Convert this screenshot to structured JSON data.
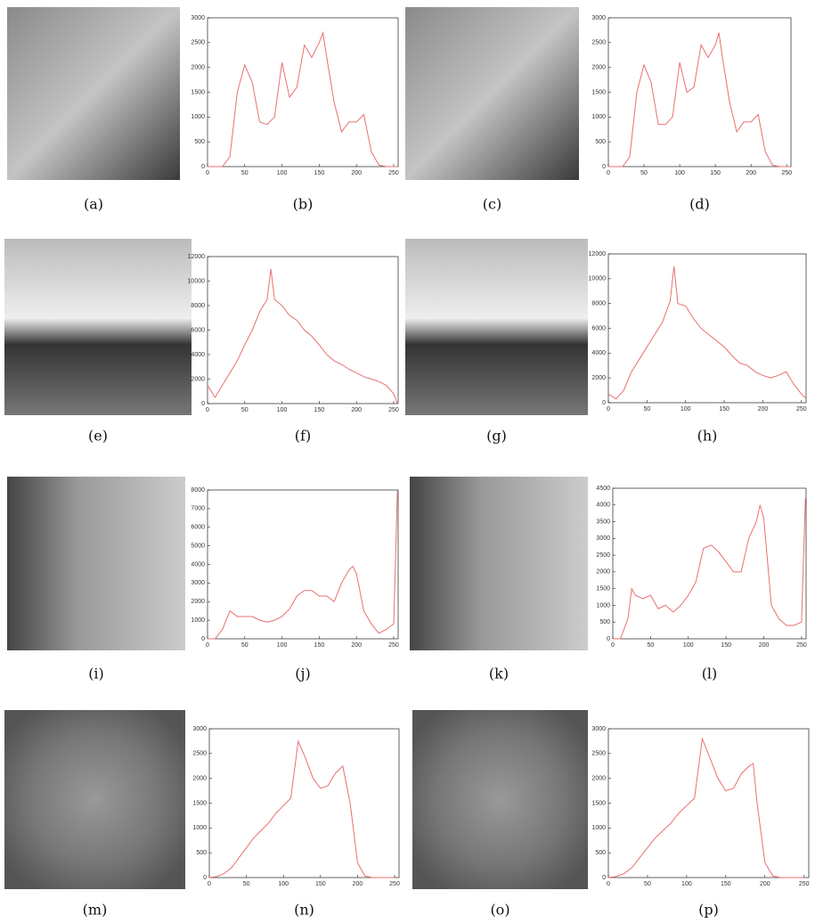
{
  "photos": [
    {
      "caption": "(a)"
    },
    {
      "caption": "(c)"
    },
    {
      "caption": "(e)"
    },
    {
      "caption": "(g)"
    },
    {
      "caption": "(i)"
    },
    {
      "caption": "(k)"
    },
    {
      "caption": "(m)"
    },
    {
      "caption": "(o)"
    }
  ],
  "chart_data": [
    {
      "type": "line",
      "caption": "(b)",
      "color": "#e8706f",
      "xlim": [
        0,
        256
      ],
      "ylim": [
        0,
        3000
      ],
      "xticks": [
        0,
        50,
        100,
        150,
        200,
        250
      ],
      "yticks": [
        0,
        500,
        1000,
        1500,
        2000,
        2500,
        3000
      ],
      "x": [
        0,
        10,
        20,
        30,
        40,
        50,
        60,
        70,
        80,
        90,
        100,
        110,
        120,
        130,
        140,
        150,
        155,
        160,
        170,
        180,
        190,
        200,
        210,
        220,
        230,
        240,
        250,
        255
      ],
      "values": [
        0,
        0,
        0,
        200,
        1500,
        2050,
        1700,
        900,
        850,
        1000,
        2100,
        1400,
        1600,
        2450,
        2200,
        2500,
        2700,
        2200,
        1300,
        700,
        900,
        900,
        1050,
        300,
        30,
        0,
        0,
        0
      ]
    },
    {
      "type": "line",
      "caption": "(d)",
      "color": "#e8706f",
      "xlim": [
        0,
        256
      ],
      "ylim": [
        0,
        3000
      ],
      "xticks": [
        0,
        50,
        100,
        150,
        200,
        250
      ],
      "yticks": [
        0,
        500,
        1000,
        1500,
        2000,
        2500,
        3000
      ],
      "x": [
        0,
        10,
        20,
        30,
        40,
        50,
        60,
        70,
        80,
        90,
        100,
        110,
        120,
        130,
        140,
        150,
        155,
        160,
        170,
        180,
        190,
        200,
        210,
        220,
        230,
        240,
        250,
        255
      ],
      "values": [
        0,
        0,
        0,
        200,
        1500,
        2050,
        1700,
        850,
        850,
        1000,
        2100,
        1500,
        1600,
        2450,
        2200,
        2450,
        2700,
        2200,
        1300,
        700,
        900,
        900,
        1050,
        300,
        30,
        0,
        0,
        0
      ]
    },
    {
      "type": "line",
      "caption": "(f)",
      "color": "#e8706f",
      "xlim": [
        0,
        256
      ],
      "ylim": [
        0,
        12000
      ],
      "xticks": [
        0,
        50,
        100,
        150,
        200,
        250
      ],
      "yticks": [
        0,
        2000,
        4000,
        6000,
        8000,
        10000,
        12000
      ],
      "x": [
        0,
        10,
        20,
        30,
        40,
        50,
        60,
        70,
        80,
        85,
        90,
        100,
        110,
        120,
        130,
        140,
        150,
        160,
        170,
        180,
        190,
        200,
        210,
        220,
        230,
        240,
        250,
        255
      ],
      "values": [
        1500,
        500,
        1500,
        2500,
        3500,
        4800,
        6000,
        7500,
        8500,
        11000,
        8500,
        8000,
        7200,
        6800,
        6000,
        5500,
        4800,
        4000,
        3500,
        3200,
        2800,
        2500,
        2200,
        2000,
        1800,
        1500,
        800,
        0
      ]
    },
    {
      "type": "line",
      "caption": "(h)",
      "color": "#e8706f",
      "xlim": [
        0,
        256
      ],
      "ylim": [
        0,
        12000
      ],
      "xticks": [
        0,
        50,
        100,
        150,
        200,
        250
      ],
      "yticks": [
        0,
        2000,
        4000,
        6000,
        8000,
        10000,
        12000
      ],
      "x": [
        0,
        10,
        20,
        30,
        40,
        50,
        60,
        70,
        80,
        85,
        90,
        100,
        110,
        120,
        130,
        140,
        150,
        160,
        170,
        180,
        190,
        200,
        210,
        220,
        230,
        240,
        250,
        255
      ],
      "values": [
        700,
        300,
        1000,
        2500,
        3500,
        4500,
        5500,
        6500,
        8200,
        11000,
        8000,
        7800,
        6800,
        6000,
        5500,
        5000,
        4500,
        3800,
        3200,
        3000,
        2500,
        2200,
        2000,
        2200,
        2500,
        1500,
        700,
        400
      ]
    },
    {
      "type": "line",
      "caption": "(j)",
      "color": "#e8706f",
      "xlim": [
        0,
        256
      ],
      "ylim": [
        0,
        8000
      ],
      "xticks": [
        0,
        50,
        100,
        150,
        200,
        250
      ],
      "yticks": [
        0,
        1000,
        2000,
        3000,
        4000,
        5000,
        6000,
        7000,
        8000
      ],
      "x": [
        0,
        10,
        20,
        30,
        40,
        50,
        60,
        70,
        80,
        90,
        100,
        110,
        120,
        130,
        140,
        150,
        160,
        170,
        180,
        190,
        195,
        200,
        210,
        220,
        230,
        240,
        250,
        255
      ],
      "values": [
        0,
        0,
        500,
        1500,
        1200,
        1200,
        1200,
        1000,
        900,
        1000,
        1200,
        1600,
        2300,
        2600,
        2600,
        2300,
        2300,
        2000,
        3000,
        3700,
        3900,
        3500,
        1500,
        800,
        300,
        500,
        800,
        8000
      ]
    },
    {
      "type": "line",
      "caption": "(l)",
      "color": "#e8706f",
      "xlim": [
        0,
        256
      ],
      "ylim": [
        0,
        4500
      ],
      "xticks": [
        0,
        50,
        100,
        150,
        200,
        250
      ],
      "yticks": [
        0,
        500,
        1000,
        1500,
        2000,
        2500,
        3000,
        3500,
        4000,
        4500
      ],
      "x": [
        0,
        10,
        20,
        25,
        30,
        40,
        50,
        60,
        70,
        80,
        90,
        100,
        110,
        120,
        130,
        140,
        150,
        160,
        170,
        180,
        190,
        195,
        200,
        210,
        220,
        230,
        240,
        250,
        255
      ],
      "values": [
        0,
        0,
        600,
        1500,
        1300,
        1200,
        1300,
        900,
        1000,
        800,
        1000,
        1300,
        1700,
        2700,
        2800,
        2600,
        2300,
        2000,
        2000,
        3000,
        3500,
        4000,
        3600,
        1000,
        600,
        400,
        400,
        500,
        4200
      ]
    },
    {
      "type": "line",
      "caption": "(n)",
      "color": "#e8706f",
      "xlim": [
        0,
        256
      ],
      "ylim": [
        0,
        3000
      ],
      "xticks": [
        0,
        50,
        100,
        150,
        200,
        250
      ],
      "yticks": [
        0,
        500,
        1000,
        1500,
        2000,
        2500,
        3000
      ],
      "x": [
        0,
        10,
        20,
        30,
        40,
        50,
        60,
        70,
        80,
        90,
        100,
        110,
        120,
        130,
        140,
        150,
        160,
        170,
        180,
        190,
        200,
        210,
        220,
        230,
        240,
        250
      ],
      "values": [
        0,
        20,
        80,
        200,
        400,
        600,
        800,
        950,
        1100,
        1300,
        1450,
        1600,
        2750,
        2400,
        2000,
        1800,
        1850,
        2100,
        2250,
        1500,
        300,
        30,
        0,
        0,
        0,
        0
      ]
    },
    {
      "type": "line",
      "caption": "(p)",
      "color": "#e8706f",
      "xlim": [
        0,
        256
      ],
      "ylim": [
        0,
        3000
      ],
      "xticks": [
        0,
        50,
        100,
        150,
        200,
        250
      ],
      "yticks": [
        0,
        500,
        1000,
        1500,
        2000,
        2500,
        3000
      ],
      "x": [
        0,
        10,
        20,
        30,
        40,
        50,
        60,
        70,
        80,
        90,
        100,
        110,
        120,
        130,
        140,
        150,
        160,
        170,
        180,
        185,
        190,
        200,
        210,
        220,
        230,
        240,
        250
      ],
      "values": [
        0,
        20,
        80,
        200,
        400,
        600,
        800,
        950,
        1100,
        1300,
        1450,
        1600,
        2800,
        2400,
        2000,
        1750,
        1800,
        2100,
        2250,
        2300,
        1500,
        300,
        30,
        0,
        0,
        0,
        0
      ]
    }
  ]
}
